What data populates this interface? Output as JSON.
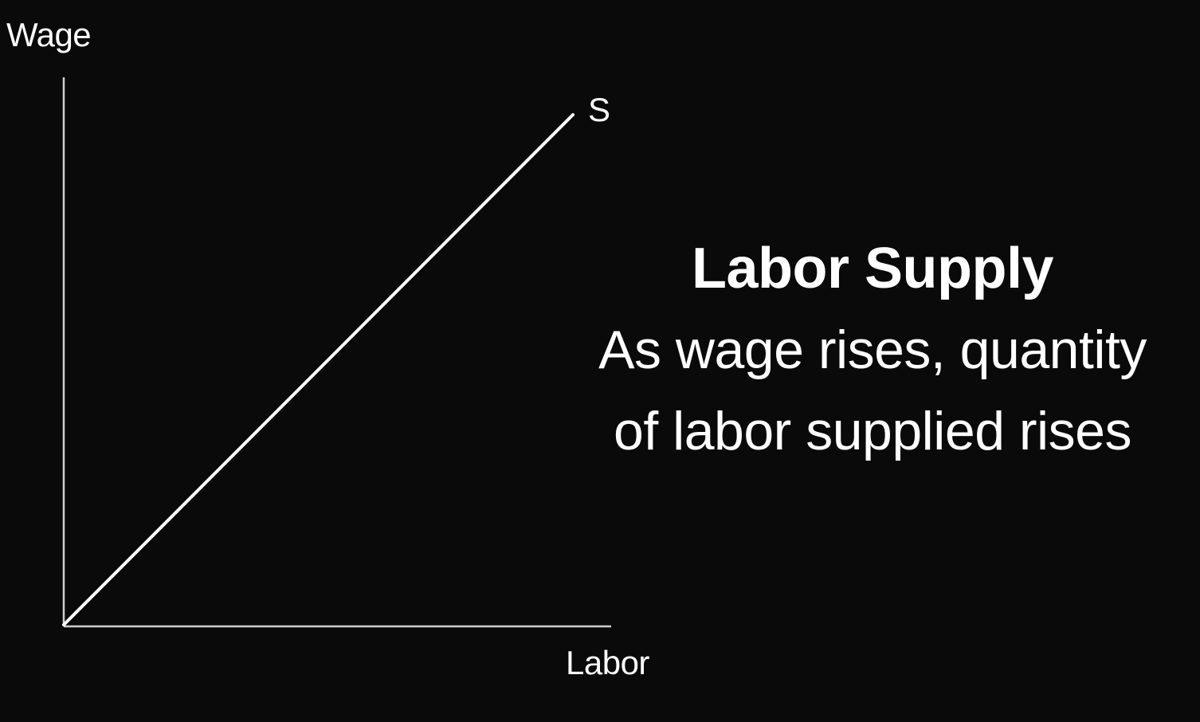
{
  "diagram": {
    "y_axis_label": "Wage",
    "x_axis_label": "Labor",
    "curve_label": "S",
    "colors": {
      "background": "#0a0a0a",
      "axes": "#cfcfcf",
      "curve": "#ffffff",
      "text": "#ffffff"
    }
  },
  "caption": {
    "title": "Labor Supply",
    "line1": "As wage rises, quantity",
    "line2": "of labor supplied rises"
  }
}
